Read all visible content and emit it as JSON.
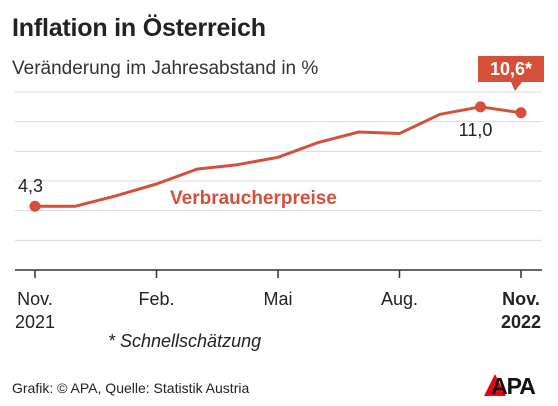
{
  "header": {
    "title": "Inflation in Österreich",
    "subtitle": "Veränderung im Jahresabstand in %"
  },
  "chart_data": {
    "type": "line",
    "title": "Inflation in Österreich",
    "subtitle": "Veränderung im Jahresabstand in %",
    "series": [
      {
        "name": "Verbraucherpreise",
        "x": [
          "2021-11",
          "2021-12",
          "2022-01",
          "2022-02",
          "2022-03",
          "2022-04",
          "2022-05",
          "2022-06",
          "2022-07",
          "2022-08",
          "2022-09",
          "2022-10",
          "2022-11"
        ],
        "values": [
          4.3,
          4.3,
          5.0,
          5.8,
          6.8,
          7.1,
          7.6,
          8.6,
          9.3,
          9.2,
          10.5,
          11.0,
          10.6
        ]
      }
    ],
    "x_ticks": [
      {
        "x": "2021-11",
        "line1": "Nov.",
        "line2": "2021",
        "bold": false
      },
      {
        "x": "2022-02",
        "line1": "Feb.",
        "line2": "",
        "bold": false
      },
      {
        "x": "2022-05",
        "line1": "Mai",
        "line2": "",
        "bold": false
      },
      {
        "x": "2022-08",
        "line1": "Aug.",
        "line2": "",
        "bold": false
      },
      {
        "x": "2022-11",
        "line1": "Nov.",
        "line2": "2022",
        "bold": true
      }
    ],
    "ylim": [
      0,
      12
    ],
    "y_gridlines": [
      2,
      4,
      6,
      8,
      10,
      12
    ],
    "grid": true,
    "labels": {
      "first": "4,3",
      "peak": "11,0",
      "last": "10,6*",
      "series": "Verbraucherpreise"
    },
    "color": "#d4503a"
  },
  "footnote": "* Schnellschätzung",
  "source": "Grafik: © APA, Quelle: Statistik Austria",
  "logo": {
    "text": "APA",
    "color": "#e30613"
  }
}
